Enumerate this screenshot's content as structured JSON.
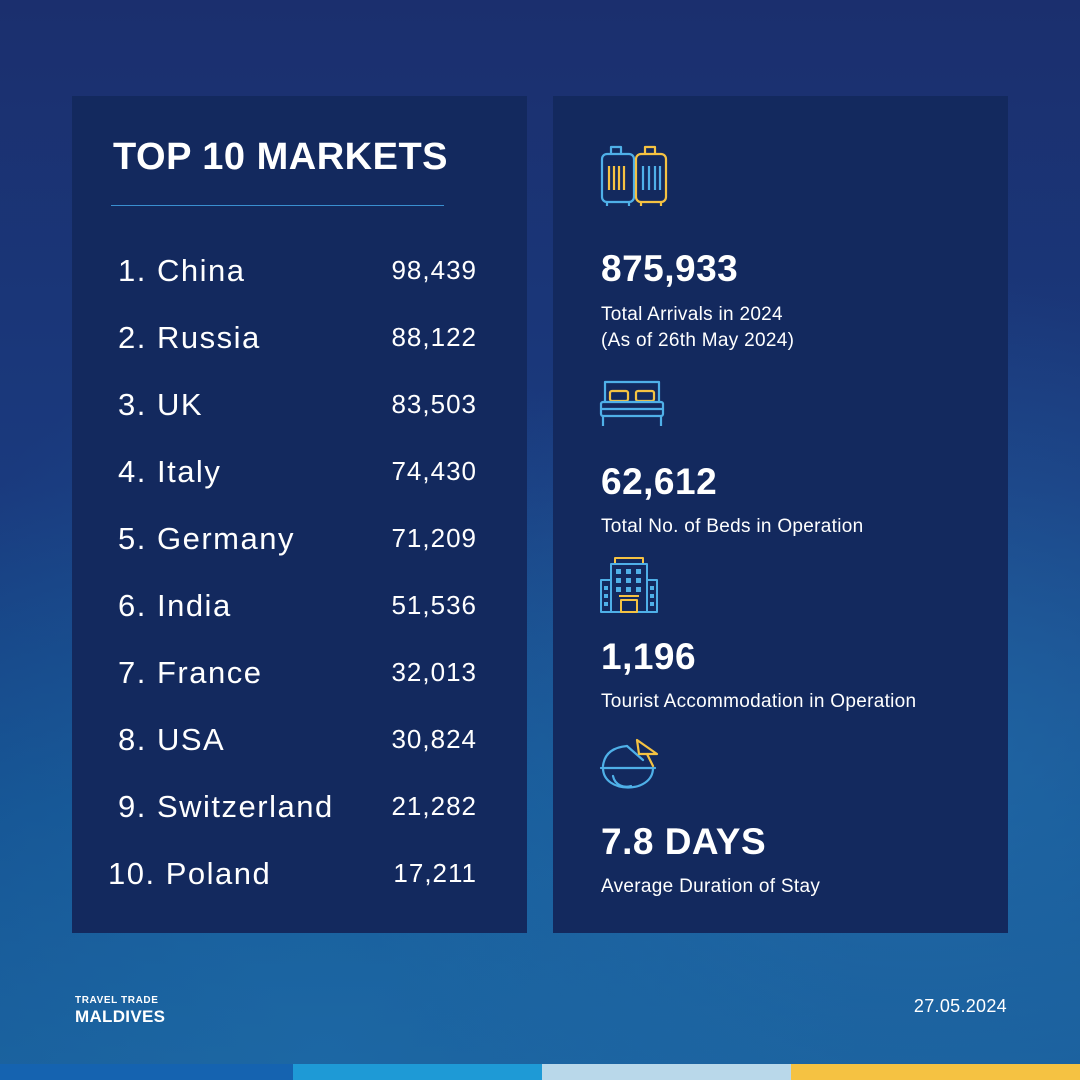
{
  "left_panel": {
    "title": "TOP 10 MARKETS",
    "markets": [
      {
        "name": "1. China",
        "value": "98,439"
      },
      {
        "name": "2. Russia",
        "value": "88,122"
      },
      {
        "name": "3. UK",
        "value": "83,503"
      },
      {
        "name": "4. Italy",
        "value": "74,430"
      },
      {
        "name": "5. Germany",
        "value": "71,209"
      },
      {
        "name": "6. India",
        "value": "51,536"
      },
      {
        "name": "7. France",
        "value": "32,013"
      },
      {
        "name": "8. USA",
        "value": "30,824"
      },
      {
        "name": "9. Switzerland",
        "value": "21,282"
      },
      {
        "name": "10. Poland",
        "value": "17,211"
      }
    ]
  },
  "right_panel": {
    "stats": [
      {
        "icon": "luggage-icon",
        "value": "875,933",
        "label_line1": "Total Arrivals in 2024",
        "label_line2": "(As of 26th May 2024)"
      },
      {
        "icon": "bed-icon",
        "value": "62,612",
        "label_line1": "Total No. of Beds in Operation",
        "label_line2": ""
      },
      {
        "icon": "hotel-building-icon",
        "value": "1,196",
        "label_line1": "Tourist Accommodation in Operation",
        "label_line2": ""
      },
      {
        "icon": "coconut-drink-icon",
        "value": "7.8 DAYS",
        "label_line1": "Average Duration of Stay",
        "label_line2": ""
      }
    ]
  },
  "footer": {
    "brand_line1": "TRAVEL TRADE",
    "brand_line2": "MALDIVES",
    "date": "27.05.2024"
  },
  "colors": {
    "panel": "#13295e",
    "accent_blue": "#4fb0e8",
    "accent_yellow": "#f5c242",
    "strip": [
      "#1563b0",
      "#1e9ad6",
      "#b9d8ea",
      "#f5c242"
    ]
  }
}
